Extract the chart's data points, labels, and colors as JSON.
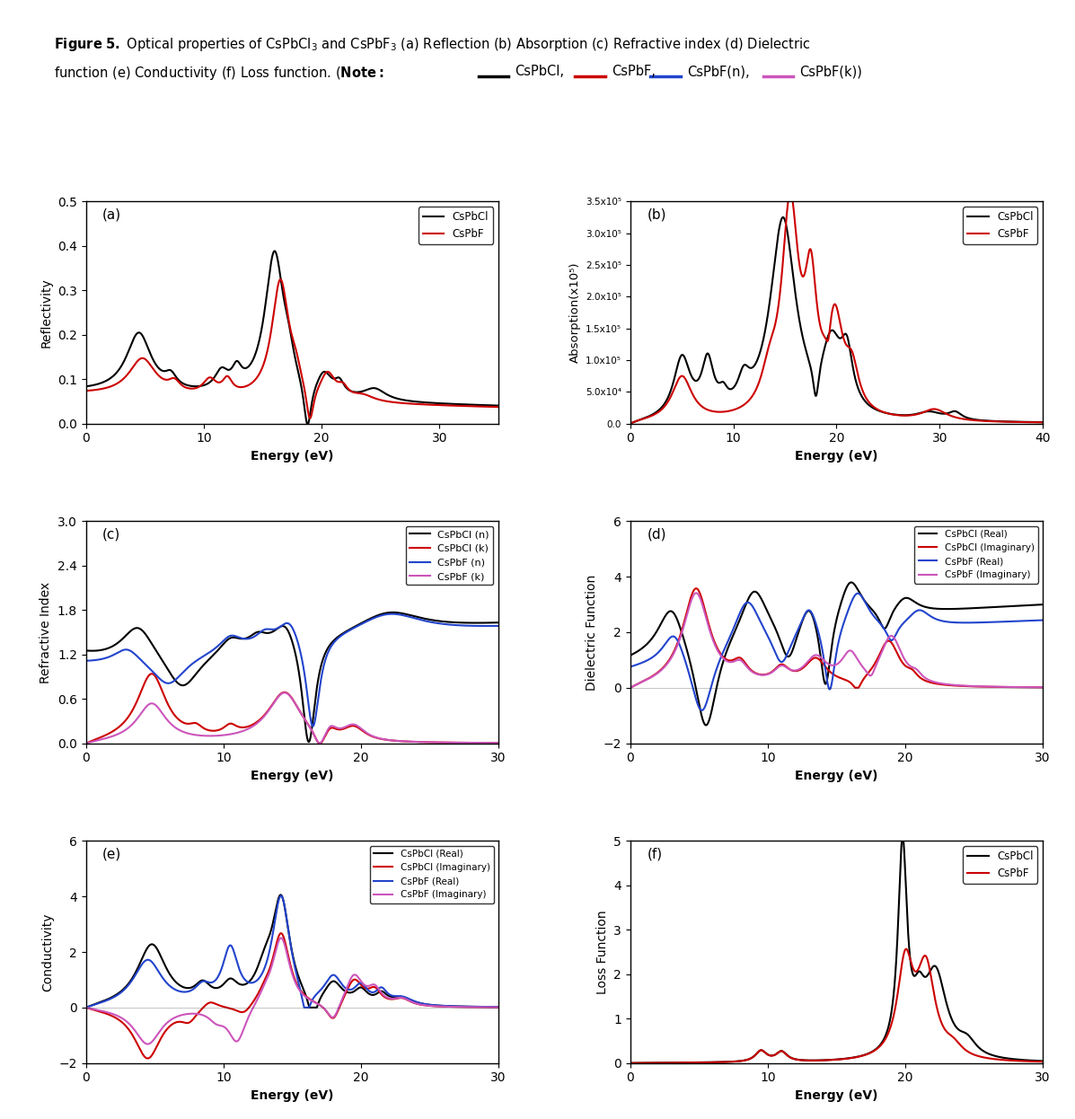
{
  "colors": {
    "black": "#000000",
    "red": "#cc0000",
    "blue": "#2244cc",
    "pink": "#cc55bb"
  },
  "panel_a": {
    "xlabel": "Energy (eV)",
    "ylabel": "Reflectivity",
    "xlim": [
      0,
      35
    ],
    "ylim": [
      0,
      0.5
    ],
    "yticks": [
      0.0,
      0.1,
      0.2,
      0.3,
      0.4,
      0.5
    ],
    "xticks": [
      0,
      10,
      20,
      30
    ]
  },
  "panel_b": {
    "xlabel": "Energy (eV)",
    "ylabel": "Absorption(x10⁵)",
    "xlim": [
      0,
      40
    ],
    "ylim": [
      0,
      350000.0
    ],
    "yticks": [
      0,
      50000,
      100000,
      150000,
      200000,
      250000,
      300000,
      350000
    ],
    "ytick_labels": [
      "0.0",
      "5.0x10⁴",
      "1.0x10⁵",
      "1.5x10⁵",
      "2.0x10⁵",
      "2.5x10⁵",
      "3.0x10⁵",
      "3.5x10⁵"
    ],
    "xticks": [
      0,
      10,
      20,
      30,
      40
    ]
  },
  "panel_c": {
    "xlabel": "Energy (eV)",
    "ylabel": "Refractive Index",
    "xlim": [
      0,
      30
    ],
    "ylim": [
      0.0,
      3.0
    ],
    "yticks": [
      0.0,
      0.6,
      1.2,
      1.8,
      2.4,
      3.0
    ],
    "xticks": [
      0,
      10,
      20,
      30
    ]
  },
  "panel_d": {
    "xlabel": "Energy (eV)",
    "ylabel": "Dielectric Function",
    "xlim": [
      0,
      30
    ],
    "ylim": [
      -2,
      6
    ],
    "yticks": [
      -2,
      0,
      2,
      4,
      6
    ],
    "xticks": [
      0,
      10,
      20,
      30
    ]
  },
  "panel_e": {
    "xlabel": "Energy (eV)",
    "ylabel": "Conductivity",
    "xlim": [
      0,
      30
    ],
    "ylim": [
      -2,
      6
    ],
    "yticks": [
      -2,
      0,
      2,
      4,
      6
    ],
    "xticks": [
      0,
      10,
      20,
      30
    ]
  },
  "panel_f": {
    "xlabel": "Energy (eV)",
    "ylabel": "Loss Function",
    "xlim": [
      0,
      30
    ],
    "ylim": [
      0,
      5
    ],
    "yticks": [
      0,
      1,
      2,
      3,
      4,
      5
    ],
    "xticks": [
      0,
      10,
      20,
      30
    ]
  }
}
